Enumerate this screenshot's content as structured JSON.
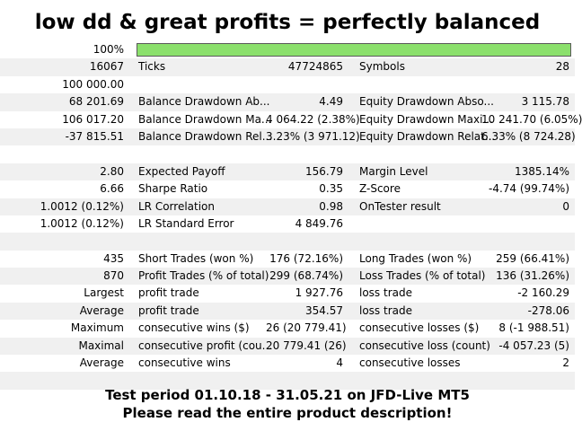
{
  "headline": "low dd & great profits = perfectly balanced",
  "progress": {
    "label": "100%",
    "fraction": 1.0,
    "fill_color": "#8be06c"
  },
  "rows": [
    {
      "c1": "16067",
      "c2": "Ticks",
      "c3": "47724865",
      "c4": "Symbols",
      "c5": "28"
    },
    {
      "c1": "100 000.00",
      "c2": "",
      "c3": "",
      "c4": "",
      "c5": ""
    },
    {
      "c1": "68 201.69",
      "c2": "Balance Drawdown Ab...",
      "c3": "4.49",
      "c4": "Equity Drawdown Abso...",
      "c5": "3 115.78"
    },
    {
      "c1": "106 017.20",
      "c2": "Balance Drawdown Ma...",
      "c3": "4 064.22 (2.38%)",
      "c4": "Equity Drawdown Maxi...",
      "c5": "10 241.70 (6.05%)"
    },
    {
      "c1": "-37 815.51",
      "c2": "Balance Drawdown Rel...",
      "c3": "3.23% (3 971.12)",
      "c4": "Equity Drawdown Relat...",
      "c5": "6.33% (8 724.28)"
    },
    {
      "c1": "",
      "c2": "",
      "c3": "",
      "c4": "",
      "c5": ""
    },
    {
      "c1": "2.80",
      "c2": "Expected Payoff",
      "c3": "156.79",
      "c4": "Margin Level",
      "c5": "1385.14%"
    },
    {
      "c1": "6.66",
      "c2": "Sharpe Ratio",
      "c3": "0.35",
      "c4": "Z-Score",
      "c5": "-4.74 (99.74%)"
    },
    {
      "c1": "1.0012 (0.12%)",
      "c2": "LR Correlation",
      "c3": "0.98",
      "c4": "OnTester result",
      "c5": "0"
    },
    {
      "c1": "1.0012 (0.12%)",
      "c2": "LR Standard Error",
      "c3": "4 849.76",
      "c4": "",
      "c5": ""
    },
    {
      "c1": "",
      "c2": "",
      "c3": "",
      "c4": "",
      "c5": ""
    },
    {
      "c1": "435",
      "c2": "Short Trades (won %)",
      "c3": "176 (72.16%)",
      "c4": "Long Trades (won %)",
      "c5": "259 (66.41%)"
    },
    {
      "c1": "870",
      "c2": "Profit Trades (% of total)",
      "c3": "299 (68.74%)",
      "c4": "Loss Trades (% of total)",
      "c5": "136 (31.26%)"
    },
    {
      "c1": "Largest",
      "c2": "profit trade",
      "c3": "1 927.76",
      "c4": "loss trade",
      "c5": "-2 160.29"
    },
    {
      "c1": "Average",
      "c2": "profit trade",
      "c3": "354.57",
      "c4": "loss trade",
      "c5": "-278.06"
    },
    {
      "c1": "Maximum",
      "c2": "consecutive wins ($)",
      "c3": "26 (20 779.41)",
      "c4": "consecutive losses ($)",
      "c5": "8 (-1 988.51)"
    },
    {
      "c1": "Maximal",
      "c2": "consecutive profit (cou...",
      "c3": "20 779.41 (26)",
      "c4": "consecutive loss (count)",
      "c5": "-4 057.23 (5)"
    },
    {
      "c1": "Average",
      "c2": "consecutive wins",
      "c3": "4",
      "c4": "consecutive losses",
      "c5": "2"
    },
    {
      "c1": "",
      "c2": "",
      "c3": "",
      "c4": "",
      "c5": ""
    }
  ],
  "footer": {
    "line1": "Test period 01.10.18 - 31.05.21 on JFD-Live MT5",
    "line2": "Please read the entire product description!"
  }
}
